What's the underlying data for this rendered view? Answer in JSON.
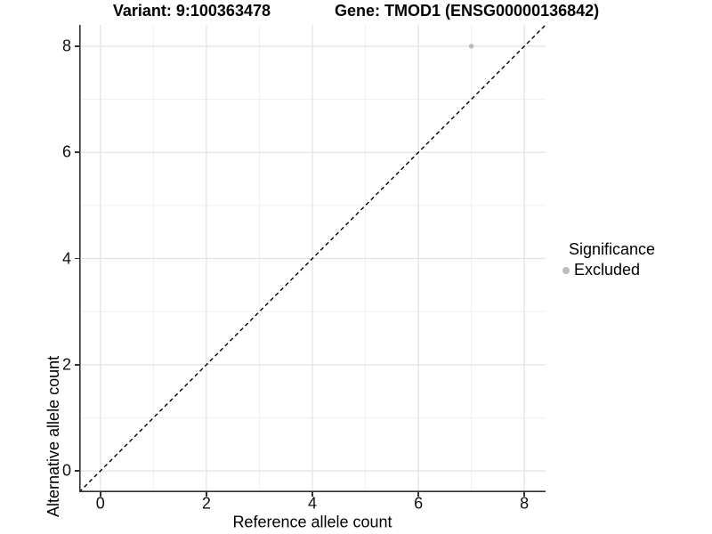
{
  "header": {
    "variant_title": "Variant: 9:100363478",
    "gene_title": "Gene: TMOD1 (ENSG00000136842)"
  },
  "axes": {
    "x": {
      "title": "Reference allele count",
      "tick_labels": [
        "0",
        "2",
        "4",
        "6",
        "8"
      ]
    },
    "y": {
      "title": "Alternative allele count",
      "tick_labels": [
        "0",
        "2",
        "4",
        "6",
        "8"
      ]
    }
  },
  "legend": {
    "title": "Significance",
    "items": [
      {
        "label": "Excluded",
        "color": "#bdbdbd"
      }
    ]
  },
  "colors": {
    "point": "#bdbdbd",
    "grid_major": "#e2e2e2",
    "grid_minor": "#eeeeee",
    "axis_line": "#333333",
    "tick_mark": "#333333",
    "dashed_line": "#000000",
    "text": "#000000",
    "background": "#ffffff"
  },
  "chart_data": {
    "type": "scatter",
    "title": "Variant: 9:100363478    Gene: TMOD1 (ENSG00000136842)",
    "xlabel": "Reference allele count",
    "ylabel": "Alternative allele count",
    "xlim": [
      -0.4,
      8.4
    ],
    "ylim": [
      -0.4,
      8.4
    ],
    "x_ticks": [
      0,
      2,
      4,
      6,
      8
    ],
    "y_ticks": [
      0,
      2,
      4,
      6,
      8
    ],
    "minor_x_ticks": [
      1,
      3,
      5,
      7
    ],
    "minor_y_ticks": [
      1,
      3,
      5,
      7
    ],
    "grid": true,
    "legend_position": "right",
    "series": [
      {
        "name": "Excluded",
        "color": "#bdbdbd",
        "points": [
          {
            "x": 7,
            "y": 8
          }
        ]
      }
    ],
    "reference_line": {
      "type": "identity y=x",
      "style": "dashed",
      "color": "#000000",
      "from": [
        -0.4,
        -0.4
      ],
      "to": [
        8.4,
        8.4
      ]
    }
  }
}
